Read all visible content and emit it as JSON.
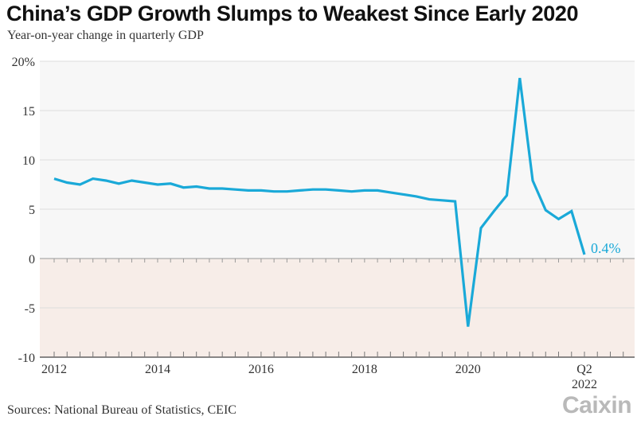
{
  "header": {
    "title": "China’s GDP Growth Slumps to Weakest Since Early 2020",
    "subtitle": "Year-on-year change in quarterly GDP"
  },
  "footer": {
    "source": "Sources: National Bureau of Statistics, CEIC",
    "logo": "Caixin"
  },
  "chart_data": {
    "type": "line",
    "title": "China’s GDP Growth Slumps to Weakest Since Early 2020",
    "subtitle": "Year-on-year change in quarterly GDP",
    "xlabel": "",
    "ylabel": "",
    "ylim": [
      -10,
      20
    ],
    "yticks": [
      -10,
      -5,
      0,
      5,
      10,
      15,
      20
    ],
    "ytick_labels": [
      "-10",
      "-5",
      "0",
      "5",
      "10",
      "15",
      "20%"
    ],
    "xticks": [
      {
        "x": "2012-Q1",
        "label": "2012"
      },
      {
        "x": "2014-Q1",
        "label": "2014"
      },
      {
        "x": "2016-Q1",
        "label": "2016"
      },
      {
        "x": "2018-Q1",
        "label": "2018"
      },
      {
        "x": "2020-Q1",
        "label": "2020"
      },
      {
        "x": "2022-Q2",
        "label": "Q2",
        "sublabel": "2022"
      }
    ],
    "grid": true,
    "negative_region_color": "#f7ede8",
    "positive_region_color": "#f7f7f7",
    "series": [
      {
        "color": "#1aa9d8",
        "x": [
          "2012-Q1",
          "2012-Q2",
          "2012-Q3",
          "2012-Q4",
          "2013-Q1",
          "2013-Q2",
          "2013-Q3",
          "2013-Q4",
          "2014-Q1",
          "2014-Q2",
          "2014-Q3",
          "2014-Q4",
          "2015-Q1",
          "2015-Q2",
          "2015-Q3",
          "2015-Q4",
          "2016-Q1",
          "2016-Q2",
          "2016-Q3",
          "2016-Q4",
          "2017-Q1",
          "2017-Q2",
          "2017-Q3",
          "2017-Q4",
          "2018-Q1",
          "2018-Q2",
          "2018-Q3",
          "2018-Q4",
          "2019-Q1",
          "2019-Q2",
          "2019-Q3",
          "2019-Q4",
          "2020-Q1",
          "2020-Q2",
          "2020-Q3",
          "2020-Q4",
          "2021-Q1",
          "2021-Q2",
          "2021-Q3",
          "2021-Q4",
          "2022-Q1",
          "2022-Q2"
        ],
        "values": [
          8.1,
          7.7,
          7.5,
          8.1,
          7.9,
          7.6,
          7.9,
          7.7,
          7.5,
          7.6,
          7.2,
          7.3,
          7.1,
          7.1,
          7.0,
          6.9,
          6.9,
          6.8,
          6.8,
          6.9,
          7.0,
          7.0,
          6.9,
          6.8,
          6.9,
          6.9,
          6.7,
          6.5,
          6.3,
          6.0,
          5.9,
          5.8,
          -6.9,
          3.1,
          4.8,
          6.4,
          18.3,
          7.9,
          4.9,
          4.0,
          4.8,
          0.4
        ]
      }
    ],
    "annotations": [
      {
        "x": "2022-Q2",
        "text": "0.4%"
      }
    ]
  }
}
